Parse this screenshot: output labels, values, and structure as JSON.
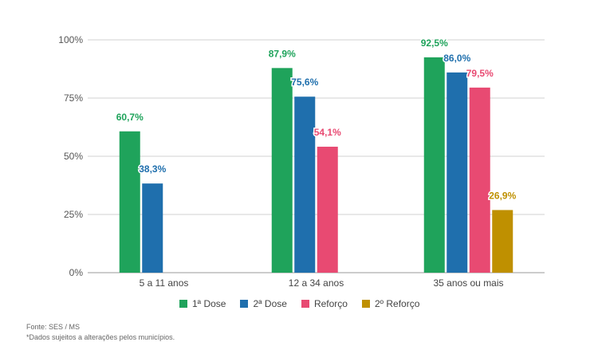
{
  "chart_data": {
    "type": "bar",
    "categories": [
      "5 a 11 anos",
      "12 a 34 anos",
      "35 anos ou mais"
    ],
    "series": [
      {
        "name": "1ª Dose",
        "color": "#1fa35b",
        "values": [
          60.7,
          87.9,
          92.5
        ],
        "labels": [
          "60,7%",
          "87,9%",
          "92,5%"
        ]
      },
      {
        "name": "2ª Dose",
        "color": "#1f6fad",
        "values": [
          38.3,
          75.6,
          86.0
        ],
        "labels": [
          "38,3%",
          "75,6%",
          "86,0%"
        ]
      },
      {
        "name": "Reforço",
        "color": "#e84a72",
        "values": [
          null,
          54.1,
          79.5
        ],
        "labels": [
          null,
          "54,1%",
          "79,5%"
        ]
      },
      {
        "name": "2º Reforço",
        "color": "#bf9000",
        "values": [
          null,
          null,
          26.9
        ],
        "labels": [
          null,
          null,
          "26,9%"
        ]
      }
    ],
    "yticks": [
      "0%",
      "25%",
      "50%",
      "75%",
      "100%"
    ],
    "ylim": [
      0,
      100
    ],
    "grid": true,
    "legend_position": "bottom"
  },
  "footer": {
    "source": "Fonte: SES / MS",
    "note": "*Dados sujeitos a alterações pelos municípios."
  }
}
